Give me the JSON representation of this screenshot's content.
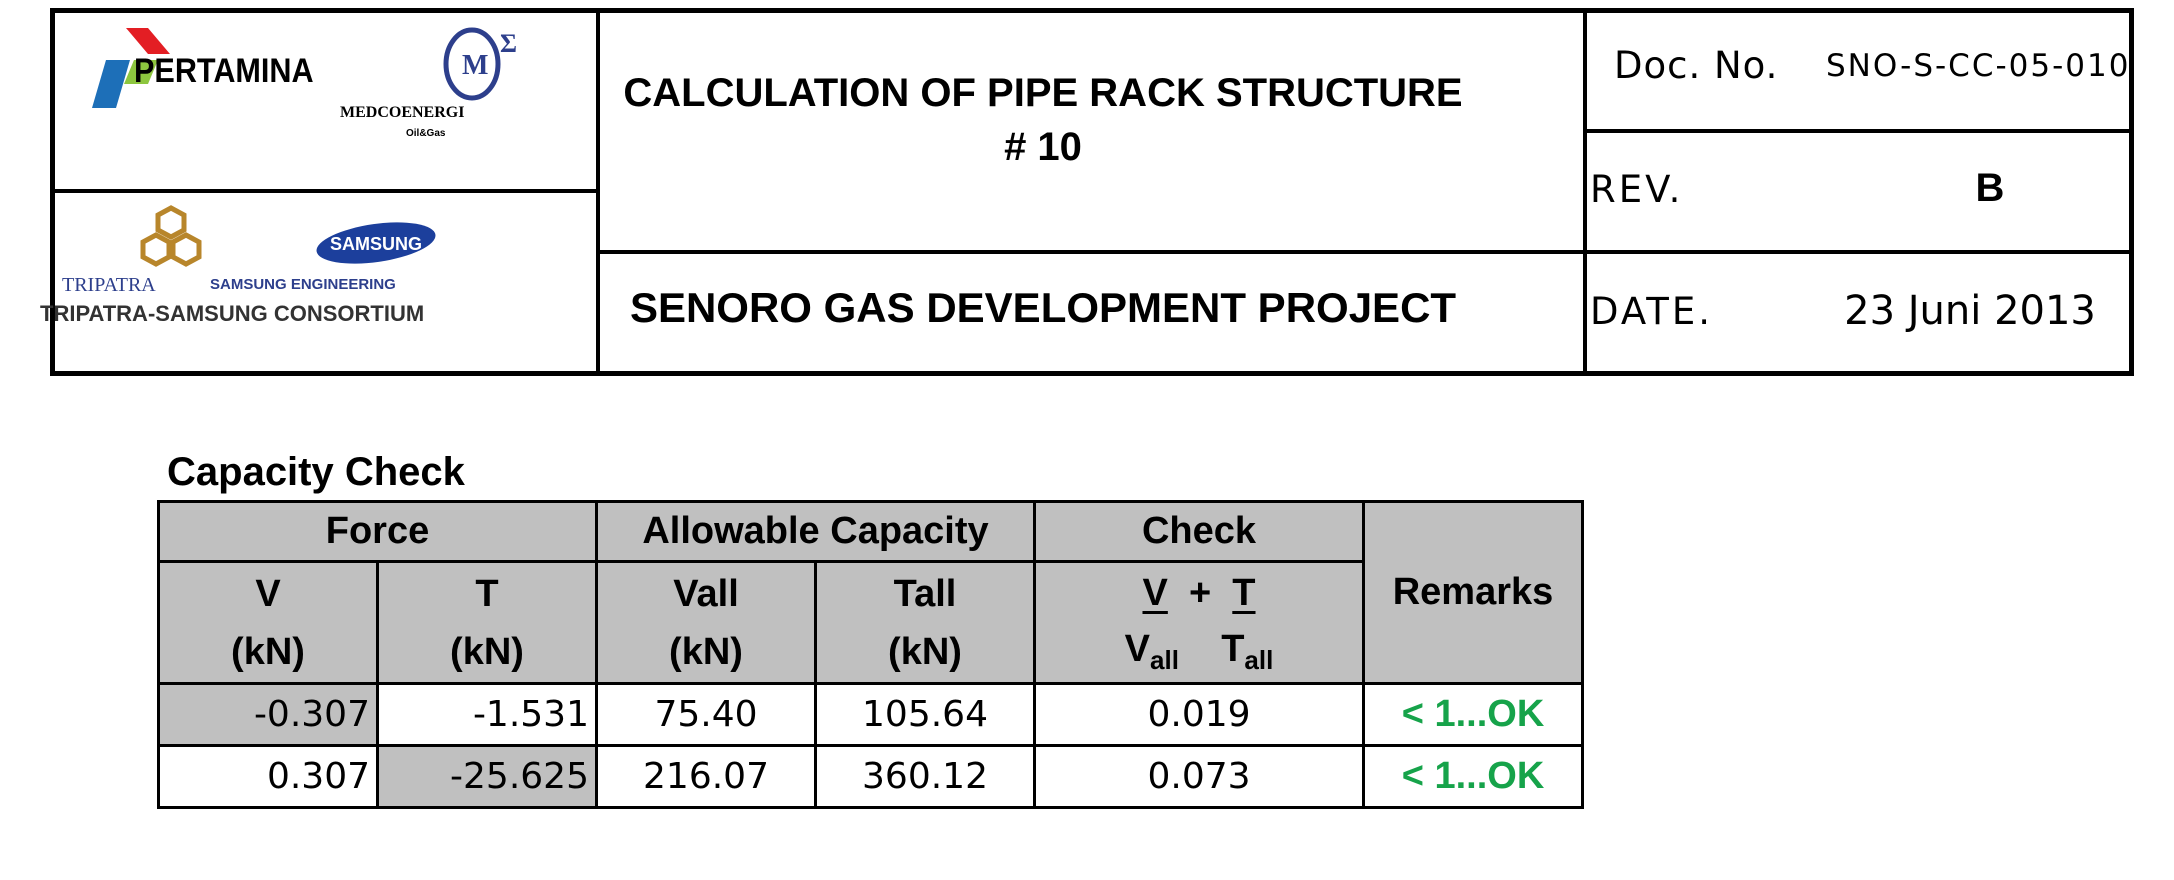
{
  "header": {
    "logos": {
      "pertamina": "PERTAMINA",
      "medco_name": "MEDCOENERGI",
      "medco_sub": "Oil&Gas",
      "tripatra": "TRIPATRA",
      "samsung_logo": "SAMSUNG",
      "samsung_engineering": "SAMSUNG ENGINEERING",
      "consortium": "TRIPATRA-SAMSUNG CONSORTIUM"
    },
    "title_line1": "CALCULATION OF PIPE RACK STRUCTURE",
    "title_line2": "# 10",
    "project": "SENORO GAS DEVELOPMENT PROJECT",
    "doc_no_label": "Doc. No.",
    "doc_no_value": "SNO-S-CC-05-010",
    "rev_label": "REV.",
    "rev_value": "B",
    "date_label": "DATE.",
    "date_value": "23 Juni 2013"
  },
  "capacity": {
    "title": "Capacity Check",
    "group_force": "Force",
    "group_allowable": "Allowable Capacity",
    "group_check": "Check",
    "remarks_header": "Remarks",
    "col_v": "V",
    "col_t": "T",
    "col_vall": "Vall",
    "col_tall": "Tall",
    "unit": "(kN)",
    "check_formula": {
      "v": "V",
      "plus": "+",
      "t": "T",
      "v_den": "V",
      "t_den": "T",
      "sub": "all"
    },
    "rows": [
      {
        "v": "-0.307",
        "t": "-1.531",
        "vall": "75.40",
        "tall": "105.64",
        "check": "0.019",
        "remarks": "< 1...OK"
      },
      {
        "v": "0.307",
        "t": "-25.625",
        "vall": "216.07",
        "tall": "360.12",
        "check": "0.073",
        "remarks": "< 1...OK"
      }
    ],
    "ok_color": "#16a34a",
    "header_bg": "#c0c0c0"
  }
}
